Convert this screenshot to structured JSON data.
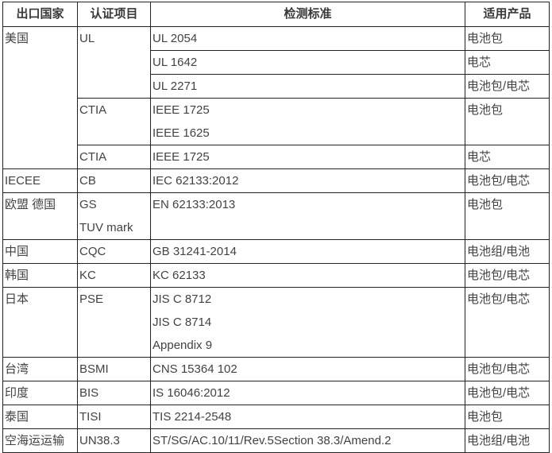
{
  "table": {
    "title": "battery-certification-standards",
    "headers": {
      "country": "出口国家",
      "cert": "认证项目",
      "standard": "检测标准",
      "product": "适用产品"
    },
    "rows": [
      {
        "country": "美国",
        "cert": "UL",
        "standard": "UL 2054",
        "product": "电池包"
      },
      {
        "standard": "UL 1642",
        "product": "电芯"
      },
      {
        "standard": "UL 2271",
        "product": "电池包/电芯"
      },
      {
        "cert": "CTIA",
        "standard": "IEEE 1725\nIEEE 1625",
        "product": "电池包"
      },
      {
        "cert": "CTIA",
        "standard": "IEEE 1725",
        "product": "电芯"
      },
      {
        "country": "IECEE",
        "cert": "CB",
        "standard": "IEC 62133:2012",
        "product": "电池包/电芯"
      },
      {
        "country": "欧盟  德国",
        "cert": "GS\nTUV mark",
        "standard": "EN 62133:2013",
        "product": "电池包"
      },
      {
        "country": "中国",
        "cert": "CQC",
        "standard": "GB 31241-2014",
        "product": "电池组/电池"
      },
      {
        "country": "韩国",
        "cert": "KC",
        "standard": "KC 62133",
        "product": "电池包/电芯"
      },
      {
        "country": "日本",
        "cert": "PSE",
        "standard": "JIS C 8712\nJIS C 8714\nAppendix 9",
        "product": "电池包/电芯"
      },
      {
        "country": "台湾",
        "cert": "BSMI",
        "standard": "CNS 15364 102",
        "product": "电池包/电芯"
      },
      {
        "country": "印度",
        "cert": "BIS",
        "standard": "IS 16046:2012",
        "product": "电池包/电芯"
      },
      {
        "country": "泰国",
        "cert": "TISI",
        "standard": "TIS 2214-2548",
        "product": "电池包"
      },
      {
        "country": "空海运运输",
        "cert": "UN38.3",
        "standard": "ST/SG/AC.10/11/Rev.5Section 38.3/Amend.2",
        "product": "电池组/电池"
      }
    ],
    "colors": {
      "border": "#222222",
      "text": "#404245",
      "background": "#ffffff"
    }
  }
}
